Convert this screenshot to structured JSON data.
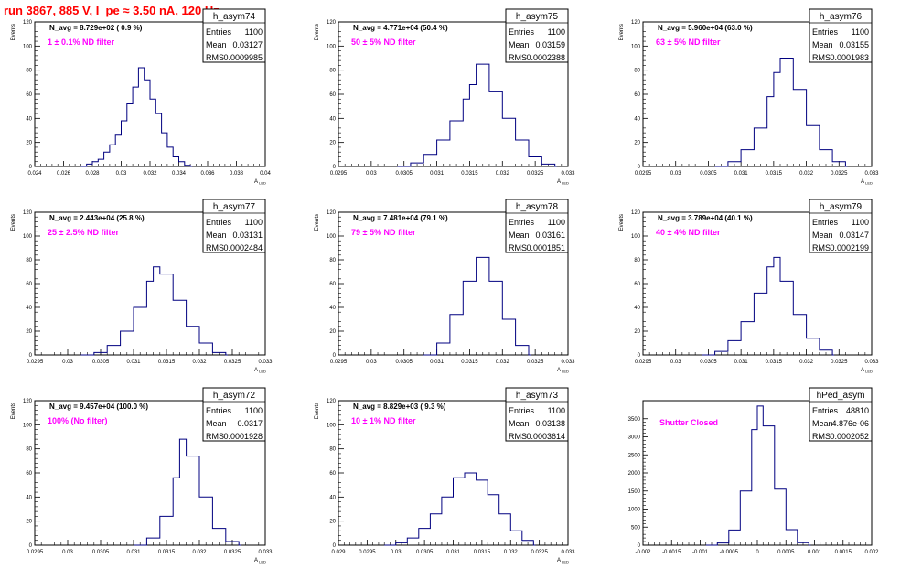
{
  "page_title": "run 3867,   885 V, I_pe ≈ 3.50 nA, 120 Hz",
  "colors": {
    "hist_line": "#000080",
    "annot_label": "#ff00ff",
    "title": "#ff0000"
  },
  "chart_data": [
    {
      "type": "bar",
      "name": "h_asym74",
      "stats": {
        "entries_label": "Entries",
        "entries": "1100",
        "mean_label": "Mean",
        "mean": "0.03127",
        "rms_label": "RMS",
        "rms": "0.0009985"
      },
      "navg_text": "N_avg =  8.729e+02 ( 0.9 %)",
      "filter_text": "1 ±  0.1% ND filter",
      "ylabel": "Events",
      "xlabel": "A",
      "x_ticks": [
        "0.024",
        "0.026",
        "0.028",
        "0.03",
        "0.032",
        "0.034",
        "0.036",
        "0.038",
        "0.04"
      ],
      "y_ticks": [
        "0",
        "20",
        "40",
        "60",
        "80",
        "100",
        "120"
      ],
      "ylim": [
        0,
        120
      ],
      "x": [
        0.0272,
        0.0276,
        0.028,
        0.0284,
        0.0288,
        0.0292,
        0.0296,
        0.03,
        0.0304,
        0.0308,
        0.0312,
        0.0316,
        0.032,
        0.0324,
        0.0328,
        0.0332,
        0.0336,
        0.034,
        0.0344,
        0.0348
      ],
      "values": [
        0,
        2,
        4,
        6,
        12,
        18,
        26,
        38,
        52,
        66,
        82,
        72,
        56,
        44,
        28,
        16,
        8,
        4,
        1,
        0
      ]
    },
    {
      "type": "bar",
      "name": "h_asym75",
      "stats": {
        "entries_label": "Entries",
        "entries": "1100",
        "mean_label": "Mean",
        "mean": "0.03159",
        "rms_label": "RMS",
        "rms": "0.0002388"
      },
      "navg_text": "N_avg =  4.771e+04 (50.4 %)",
      "filter_text": "50 ±  5% ND filter",
      "ylabel": "Events",
      "xlabel": "A",
      "x_ticks": [
        "0.0295",
        "0.03",
        "0.0305",
        "0.031",
        "0.0315",
        "0.032",
        "0.0325",
        "0.033"
      ],
      "y_ticks": [
        "0",
        "20",
        "40",
        "60",
        "80",
        "100",
        "120"
      ],
      "ylim": [
        0,
        120
      ],
      "x": [
        0.0304,
        0.0306,
        0.0308,
        0.031,
        0.0312,
        0.0314,
        0.0315,
        0.0316,
        0.0318,
        0.032,
        0.0322,
        0.0324,
        0.0326,
        0.0328
      ],
      "values": [
        0,
        3,
        10,
        22,
        38,
        56,
        68,
        85,
        62,
        40,
        22,
        8,
        2,
        0
      ]
    },
    {
      "type": "bar",
      "name": "h_asym76",
      "stats": {
        "entries_label": "Entries",
        "entries": "1100",
        "mean_label": "Mean",
        "mean": "0.03155",
        "rms_label": "RMS",
        "rms": "0.0001983"
      },
      "navg_text": "N_avg =  5.960e+04 (63.0 %)",
      "filter_text": "63 ±  5% ND filter",
      "ylabel": "Events",
      "xlabel": "A",
      "x_ticks": [
        "0.0295",
        "0.03",
        "0.0305",
        "0.031",
        "0.0315",
        "0.032",
        "0.0325",
        "0.033"
      ],
      "y_ticks": [
        "0",
        "20",
        "40",
        "60",
        "80",
        "100",
        "120"
      ],
      "ylim": [
        0,
        120
      ],
      "x": [
        0.0306,
        0.0308,
        0.031,
        0.0312,
        0.0314,
        0.0315,
        0.0316,
        0.0318,
        0.032,
        0.0322,
        0.0324,
        0.0326
      ],
      "values": [
        0,
        4,
        14,
        32,
        58,
        78,
        90,
        64,
        34,
        14,
        4,
        0
      ]
    },
    {
      "type": "bar",
      "name": "h_asym77",
      "stats": {
        "entries_label": "Entries",
        "entries": "1100",
        "mean_label": "Mean",
        "mean": "0.03131",
        "rms_label": "RMS",
        "rms": "0.0002484"
      },
      "navg_text": "N_avg =  2.443e+04 (25.8 %)",
      "filter_text": "25 ±  2.5% ND filter",
      "ylabel": "Events",
      "xlabel": "A",
      "x_ticks": [
        "0.0295",
        "0.03",
        "0.0305",
        "0.031",
        "0.0315",
        "0.032",
        "0.0325",
        "0.033"
      ],
      "y_ticks": [
        "0",
        "20",
        "40",
        "60",
        "80",
        "100",
        "120"
      ],
      "ylim": [
        0,
        120
      ],
      "x": [
        0.0302,
        0.0304,
        0.0306,
        0.0308,
        0.031,
        0.0312,
        0.0313,
        0.0314,
        0.0316,
        0.0318,
        0.032,
        0.0322,
        0.0324
      ],
      "values": [
        0,
        2,
        8,
        20,
        40,
        62,
        74,
        68,
        46,
        24,
        10,
        2,
        0
      ]
    },
    {
      "type": "bar",
      "name": "h_asym78",
      "stats": {
        "entries_label": "Entries",
        "entries": "1100",
        "mean_label": "Mean",
        "mean": "0.03161",
        "rms_label": "RMS",
        "rms": "0.0001851"
      },
      "navg_text": "N_avg =  7.481e+04 (79.1 %)",
      "filter_text": "79 ±  5% ND filter",
      "ylabel": "Events",
      "xlabel": "A",
      "x_ticks": [
        "0.0295",
        "0.03",
        "0.0305",
        "0.031",
        "0.0315",
        "0.032",
        "0.0325",
        "0.033"
      ],
      "y_ticks": [
        "0",
        "20",
        "40",
        "60",
        "80",
        "100",
        "120"
      ],
      "ylim": [
        0,
        120
      ],
      "x": [
        0.0308,
        0.031,
        0.0312,
        0.0314,
        0.0316,
        0.0318,
        0.032,
        0.0322,
        0.0324
      ],
      "values": [
        0,
        10,
        34,
        62,
        82,
        62,
        30,
        8,
        0
      ]
    },
    {
      "type": "bar",
      "name": "h_asym79",
      "stats": {
        "entries_label": "Entries",
        "entries": "1100",
        "mean_label": "Mean",
        "mean": "0.03147",
        "rms_label": "RMS",
        "rms": "0.0002199"
      },
      "navg_text": "N_avg =  3.789e+04 (40.1 %)",
      "filter_text": "40 ±  4% ND filter",
      "ylabel": "Events",
      "xlabel": "A",
      "x_ticks": [
        "0.0295",
        "0.03",
        "0.0305",
        "0.031",
        "0.0315",
        "0.032",
        "0.0325",
        "0.033"
      ],
      "y_ticks": [
        "0",
        "20",
        "40",
        "60",
        "80",
        "100",
        "120"
      ],
      "ylim": [
        0,
        120
      ],
      "x": [
        0.0304,
        0.0306,
        0.0308,
        0.031,
        0.0312,
        0.0314,
        0.0315,
        0.0316,
        0.0318,
        0.032,
        0.0322,
        0.0324
      ],
      "values": [
        0,
        3,
        12,
        28,
        52,
        74,
        82,
        62,
        34,
        14,
        4,
        0
      ]
    },
    {
      "type": "bar",
      "name": "h_asym72",
      "stats": {
        "entries_label": "Entries",
        "entries": "1100",
        "mean_label": "Mean",
        "mean": "0.0317",
        "rms_label": "RMS",
        "rms": "0.0001928"
      },
      "navg_text": "N_avg =  9.457e+04 (100.0 %)",
      "filter_text": "100% (No filter)",
      "ylabel": "Events",
      "xlabel": "A",
      "x_ticks": [
        "0.0295",
        "0.03",
        "0.0305",
        "0.031",
        "0.0315",
        "0.032",
        "0.0325",
        "0.033"
      ],
      "y_ticks": [
        "0",
        "20",
        "40",
        "60",
        "80",
        "100",
        "120"
      ],
      "ylim": [
        0,
        120
      ],
      "x": [
        0.031,
        0.0312,
        0.0314,
        0.0316,
        0.0317,
        0.0318,
        0.032,
        0.0322,
        0.0324,
        0.0326
      ],
      "values": [
        0,
        6,
        24,
        56,
        88,
        74,
        40,
        14,
        3,
        0
      ]
    },
    {
      "type": "bar",
      "name": "h_asym73",
      "stats": {
        "entries_label": "Entries",
        "entries": "1100",
        "mean_label": "Mean",
        "mean": "0.03138",
        "rms_label": "RMS",
        "rms": "0.0003614"
      },
      "navg_text": "N_avg =  8.829e+03 ( 9.3 %)",
      "filter_text": "10 ±  1% ND filter",
      "ylabel": "Events",
      "xlabel": "A",
      "x_ticks": [
        "0.029",
        "0.0295",
        "0.03",
        "0.0305",
        "0.031",
        "0.0315",
        "0.032",
        "0.0325",
        "0.033"
      ],
      "y_ticks": [
        "0",
        "20",
        "40",
        "60",
        "80",
        "100",
        "120"
      ],
      "ylim": [
        0,
        120
      ],
      "x": [
        0.0298,
        0.03,
        0.0302,
        0.0304,
        0.0306,
        0.0308,
        0.031,
        0.0312,
        0.0314,
        0.0316,
        0.0318,
        0.032,
        0.0322,
        0.0324
      ],
      "values": [
        0,
        2,
        6,
        14,
        26,
        40,
        56,
        60,
        54,
        42,
        26,
        12,
        4,
        0
      ]
    },
    {
      "type": "bar",
      "name": "hPed_asym",
      "stats": {
        "entries_label": "Entries",
        "entries": "48810",
        "mean_label": "Mean",
        "mean": "-4.876e-06",
        "rms_label": "RMS",
        "rms": "0.0002052"
      },
      "navg_text": "",
      "filter_text": "Shutter Closed",
      "ylabel": "",
      "xlabel": "",
      "x_ticks": [
        "-0.002",
        "-0.0015",
        "-0.001",
        "-0.0005",
        "0",
        "0.0005",
        "0.001",
        "0.0015",
        "0.002"
      ],
      "y_ticks": [
        "0",
        "500",
        "1000",
        "1500",
        "2000",
        "2500",
        "3000",
        "3500"
      ],
      "ylim": [
        0,
        4000
      ],
      "x": [
        -0.0009,
        -0.0007,
        -0.0005,
        -0.0003,
        -0.0001,
        0.0,
        0.0001,
        0.0003,
        0.0005,
        0.0007,
        0.0009
      ],
      "values": [
        0,
        60,
        420,
        1500,
        3200,
        3850,
        3300,
        1550,
        430,
        70,
        0
      ]
    }
  ]
}
